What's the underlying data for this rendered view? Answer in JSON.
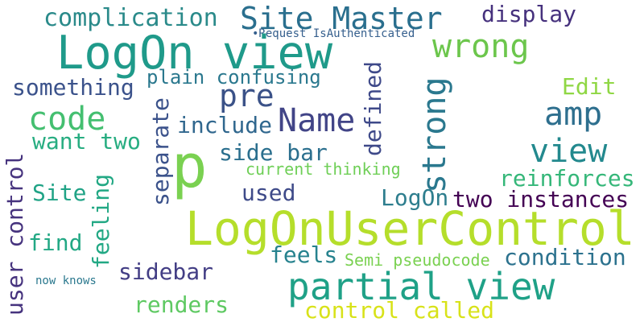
{
  "words": [
    {
      "text": "complication",
      "color": "#2a8a8a"
    },
    {
      "text": "Site Master",
      "color": "#2a6f8e"
    },
    {
      "text": "display",
      "color": "#46317d"
    },
    {
      "text": "•Request IsAuthenticated",
      "color": "#355f8d"
    },
    {
      "text": "LogOn view",
      "color": "#1f9a8a"
    },
    {
      "text": "wrong",
      "color": "#6cc64c"
    },
    {
      "text": "something",
      "color": "#3b528b"
    },
    {
      "text": "plain confusing",
      "color": "#2a788e"
    },
    {
      "text": "pre",
      "color": "#3b5288"
    },
    {
      "text": "Edit",
      "color": "#8fd744"
    },
    {
      "text": "code",
      "color": "#44bf70"
    },
    {
      "text": "Name",
      "color": "#414487"
    },
    {
      "text": "include",
      "color": "#30678e"
    },
    {
      "text": "amp",
      "color": "#2e6f8e"
    },
    {
      "text": "want two",
      "color": "#27ad81"
    },
    {
      "text": "view",
      "color": "#23898e"
    },
    {
      "text": "side bar",
      "color": "#2b6f8e"
    },
    {
      "text": "current thinking",
      "color": "#6fcf57"
    },
    {
      "text": "reinforces",
      "color": "#35b779"
    },
    {
      "text": "Site",
      "color": "#20a386"
    },
    {
      "text": "used",
      "color": "#3e4a89"
    },
    {
      "text": "LogOn",
      "color": "#2e7e8e"
    },
    {
      "text": "two instances",
      "color": "#440154"
    },
    {
      "text": "p",
      "color": "#7ad151"
    },
    {
      "text": "LogOnUserControl",
      "color": "#b5de2b"
    },
    {
      "text": "find",
      "color": "#22a884"
    },
    {
      "text": "feels",
      "color": "#26828e"
    },
    {
      "text": "Semi pseudocode",
      "color": "#7ad151"
    },
    {
      "text": "condition",
      "color": "#2c728e"
    },
    {
      "text": "sidebar",
      "color": "#433e85"
    },
    {
      "text": "partial view",
      "color": "#1fa187"
    },
    {
      "text": "now knows",
      "color": "#2a788e"
    },
    {
      "text": "renders",
      "color": "#5ec962"
    },
    {
      "text": "control called",
      "color": "#d8e219"
    },
    {
      "text": "strong",
      "color": "#2a788e"
    },
    {
      "text": "defined",
      "color": "#3e4989"
    },
    {
      "text": "separate",
      "color": "#3b528b"
    },
    {
      "text": "feeling",
      "color": "#22a884"
    },
    {
      "text": "user control",
      "color": "#46337e"
    }
  ]
}
